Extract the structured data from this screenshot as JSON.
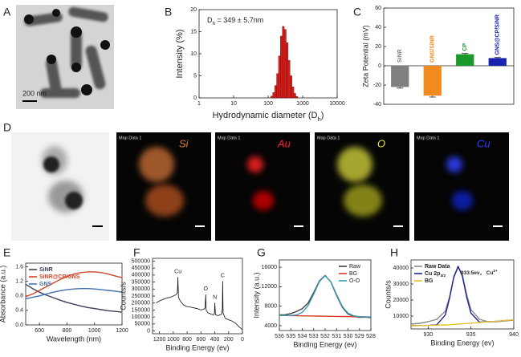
{
  "panels": {
    "A": {
      "label": "A",
      "scale_bar": "200 nm"
    },
    "D": {
      "label": "D",
      "maps": [
        {
          "title": "Map Data 1",
          "element": "Si"
        },
        {
          "title": "Map Data 1",
          "element": "Au"
        },
        {
          "title": "Map Data 1",
          "element": "O"
        },
        {
          "title": "Map Data 1",
          "element": "Cu"
        }
      ]
    }
  },
  "chart_data": [
    {
      "type": "histogram",
      "label": "B",
      "color": "#d9201c",
      "annotation": [
        "D",
        "h",
        " = 349 ± 5.7nm"
      ],
      "xlabel": [
        "Hydrodynamic diameter (D",
        "h",
        ")"
      ],
      "ylabel": "Intensity (%)",
      "xscale": "log",
      "xlim": [
        1,
        10000
      ],
      "xticks": [
        1,
        10,
        100,
        1000,
        10000
      ],
      "ylim": [
        0,
        20
      ],
      "yticks": [
        0,
        5,
        10,
        15,
        20
      ],
      "bins": [
        120,
        136,
        155,
        176,
        200,
        227,
        258,
        293,
        333,
        379,
        431,
        490,
        557,
        633,
        720
      ],
      "values": [
        0.4,
        1.2,
        2.8,
        5.5,
        9.5,
        14,
        16.2,
        15.5,
        12.5,
        8.5,
        5,
        2.5,
        1,
        0.3
      ]
    },
    {
      "type": "bar",
      "label": "C",
      "ylabel": "Zeta Potential (mV)",
      "ylim": [
        -40,
        60
      ],
      "yticks": [
        -40,
        -20,
        0,
        20,
        40,
        60
      ],
      "categories": [
        "SiNR",
        "GNS/SiNR",
        "CP",
        "GNS@CP/SiNR"
      ],
      "values": [
        -22,
        -31,
        12,
        8
      ],
      "errors": [
        1.2,
        1.5,
        0.8,
        0.6
      ],
      "colors": [
        "#808080",
        "#f28a1e",
        "#1a9a2a",
        "#1c22b0"
      ]
    },
    {
      "type": "line",
      "label": "E",
      "xlabel": "Wavelength (nm)",
      "ylabel": "Absorbance (a.u.)",
      "xlim": [
        500,
        1200
      ],
      "xticks": [
        600,
        800,
        1000,
        1200
      ],
      "ylim": [
        0,
        1.7
      ],
      "yticks": [
        {
          "value": 0,
          "label": "0.0"
        },
        {
          "value": 0.4,
          "label": "0.4"
        },
        {
          "value": 0.8,
          "label": "0.8"
        },
        {
          "value": 1.2,
          "label": "1.2"
        },
        {
          "value": 1.6,
          "label": "1.6"
        }
      ],
      "legend": "upper left",
      "x": [
        500,
        550,
        600,
        650,
        700,
        750,
        800,
        850,
        900,
        950,
        1000,
        1050,
        1100,
        1150,
        1200
      ],
      "series": [
        {
          "name": "SiNR",
          "color": "#3a3f55",
          "values": [
            1.12,
            1.0,
            0.9,
            0.82,
            0.75,
            0.68,
            0.62,
            0.57,
            0.52,
            0.48,
            0.45,
            0.42,
            0.39,
            0.37,
            0.35
          ]
        },
        {
          "name": "SiNR@CP/GNS",
          "color": "#d2452a",
          "values": [
            0.78,
            0.85,
            0.95,
            1.05,
            1.15,
            1.25,
            1.33,
            1.4,
            1.44,
            1.46,
            1.46,
            1.44,
            1.4,
            1.35,
            1.3
          ]
        },
        {
          "name": "GNS",
          "color": "#3f6fb0",
          "values": [
            0.72,
            0.76,
            0.8,
            0.85,
            0.9,
            0.94,
            0.97,
            0.99,
            1.0,
            1.0,
            0.99,
            0.97,
            0.95,
            0.93,
            0.9
          ]
        }
      ]
    },
    {
      "type": "line",
      "label": "F",
      "xlabel": "Binding Energy (ev)",
      "ylabel": "Counts/s",
      "xlim": [
        1300,
        0
      ],
      "xticks": [
        1200,
        1000,
        800,
        600,
        400,
        200,
        0
      ],
      "ylim": [
        -20000,
        520000
      ],
      "yticks": [
        0,
        50000,
        100000,
        150000,
        200000,
        250000,
        300000,
        350000,
        400000,
        450000,
        500000
      ],
      "peak_labels": [
        {
          "text": "Cu",
          "x": 933
        },
        {
          "text": "O",
          "x": 531
        },
        {
          "text": "N",
          "x": 399
        },
        {
          "text": "C",
          "x": 285
        }
      ],
      "x": [
        1250,
        1200,
        1150,
        1100,
        1050,
        1000,
        960,
        940,
        933,
        925,
        900,
        850,
        800,
        750,
        700,
        650,
        600,
        560,
        540,
        531,
        525,
        500,
        450,
        420,
        405,
        399,
        390,
        350,
        300,
        290,
        285,
        280,
        250,
        200,
        150,
        100,
        50,
        0
      ],
      "series": [
        {
          "name": "Survey",
          "color": "#111111",
          "values": [
            200000,
            215000,
            225000,
            235000,
            240000,
            250000,
            260000,
            275000,
            385000,
            240000,
            215000,
            185000,
            175000,
            170000,
            165000,
            160000,
            150000,
            155000,
            165000,
            260000,
            150000,
            130000,
            120000,
            115000,
            125000,
            200000,
            115000,
            110000,
            120000,
            160000,
            355000,
            130000,
            90000,
            80000,
            70000,
            55000,
            30000,
            10000
          ]
        }
      ]
    },
    {
      "type": "line",
      "label": "G",
      "xlabel": "Binding Energy (ev)",
      "ylabel": "Intensity (a.u.)",
      "xlim": [
        536,
        528
      ],
      "xticks": [
        536,
        535,
        534,
        533,
        532,
        531,
        530,
        529,
        528
      ],
      "ylim": [
        3000,
        17500
      ],
      "yticks": [
        4000,
        8000,
        12000,
        16000
      ],
      "legend": "upper right",
      "x": [
        536,
        535.5,
        535,
        534.5,
        534,
        533.5,
        533,
        532.5,
        532,
        531.5,
        531,
        530.5,
        530,
        529.5,
        529,
        528.5,
        528
      ],
      "series": [
        {
          "name": "Raw",
          "color": "#404040",
          "values": [
            6200,
            6250,
            6500,
            6900,
            7500,
            8600,
            10800,
            13200,
            14300,
            13000,
            10200,
            7800,
            6400,
            5900,
            5700,
            5750,
            5650
          ]
        },
        {
          "name": "BG",
          "color": "#d23a2a",
          "values": [
            6100,
            6080,
            6060,
            6040,
            6020,
            6000,
            5980,
            5960,
            5940,
            5920,
            5900,
            5880,
            5860,
            5840,
            5820,
            5800,
            5780
          ]
        },
        {
          "name": "O-O",
          "color": "#3a9bb5",
          "values": [
            6100,
            6084,
            6093,
            6214,
            6726,
            8075,
            10462,
            13073,
            14240,
            13033,
            10382,
            7955,
            6566,
            6014,
            5853,
            5804,
            5780
          ]
        }
      ]
    },
    {
      "type": "line",
      "label": "H",
      "xlabel": "Binding Energy (ev)",
      "ylabel": "Counts/s",
      "annotation": [
        "933.5ev， Cu",
        "2+"
      ],
      "xlim": [
        928,
        940
      ],
      "xticks": [
        930,
        935,
        940
      ],
      "ylim": [
        2000,
        45000
      ],
      "yticks": [
        10000,
        20000,
        30000,
        40000
      ],
      "legend": "upper left",
      "x": [
        928,
        929,
        930,
        931,
        932,
        932.5,
        933,
        933.5,
        934,
        934.5,
        935,
        936,
        937,
        938,
        939,
        940
      ],
      "series": [
        {
          "name": "Raw Data",
          "color": "#8a8a8a",
          "values": [
            5000,
            5500,
            6500,
            8000,
            13000,
            22000,
            34000,
            40500,
            35500,
            23500,
            14000,
            8000,
            6500,
            6500,
            7000,
            7500
          ]
        },
        {
          "name": [
            "Cu 2p",
            "3/2"
          ],
          "color": "#1c2590",
          "values": [
            4000,
            4100,
            4200,
            4574,
            10692,
            21088,
            34428,
            41000,
            34828,
            21888,
            11792,
            6274,
            6400,
            6800,
            7200,
            7600
          ]
        },
        {
          "name": "BG",
          "color": "#e8c22a",
          "values": [
            4000,
            4100,
            4200,
            4300,
            4500,
            4600,
            4800,
            5000,
            5200,
            5400,
            5600,
            6000,
            6400,
            6800,
            7200,
            7600
          ]
        }
      ]
    }
  ]
}
